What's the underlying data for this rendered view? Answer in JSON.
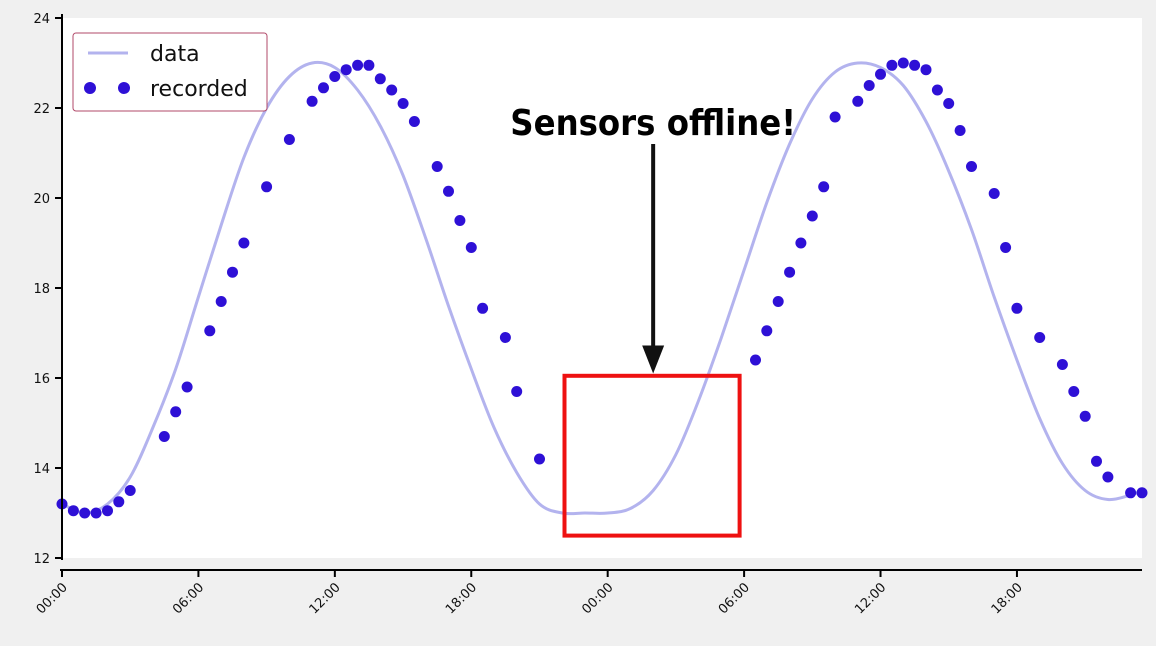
{
  "chart_data": {
    "type": "line",
    "title": "",
    "xlabel": "",
    "ylabel": "",
    "ylim": [
      12,
      24
    ],
    "xlim_hours": [
      0,
      47.5
    ],
    "y_ticks": [
      12,
      14,
      16,
      18,
      20,
      22,
      24
    ],
    "x_tick_hours": [
      0,
      6,
      12,
      18,
      24,
      30,
      36,
      42
    ],
    "x_tick_labels": [
      "00:00",
      "06:00",
      "12:00",
      "18:00",
      "00:00",
      "06:00",
      "12:00",
      "18:00"
    ],
    "grid": false,
    "legend": {
      "placement": "top-left",
      "entries": [
        "data",
        "recorded"
      ]
    },
    "colors": {
      "line": "#b3b3ee",
      "points": "#2e10d6",
      "box": "#ee1111",
      "arrow": "#111111",
      "plot_bg": "#ffffff",
      "page_bg": "#f0f0f0"
    },
    "series": [
      {
        "name": "data",
        "kind": "line",
        "x_hours": [
          0,
          1,
          2,
          3,
          4,
          5,
          6,
          7,
          8,
          9,
          10,
          11,
          12,
          13,
          14,
          15,
          16,
          17,
          18,
          19,
          20,
          21,
          22,
          23,
          24,
          25,
          26,
          27,
          28,
          29,
          30,
          31,
          32,
          33,
          34,
          35,
          36,
          37,
          38,
          39,
          40,
          41,
          42,
          43,
          44,
          45,
          46,
          47,
          47.5
        ],
        "y": [
          13.2,
          13.0,
          13.2,
          13.8,
          14.9,
          16.2,
          17.8,
          19.4,
          20.9,
          22.0,
          22.7,
          23.0,
          22.9,
          22.4,
          21.6,
          20.5,
          19.1,
          17.6,
          16.2,
          14.9,
          13.9,
          13.2,
          13.0,
          13.0,
          13.0,
          13.1,
          13.5,
          14.3,
          15.5,
          16.9,
          18.4,
          19.9,
          21.2,
          22.2,
          22.8,
          23.0,
          22.9,
          22.5,
          21.7,
          20.6,
          19.3,
          17.8,
          16.4,
          15.1,
          14.1,
          13.5,
          13.3,
          13.4,
          13.5
        ]
      },
      {
        "name": "recorded",
        "kind": "scatter",
        "x_hours": [
          0.0,
          0.5,
          1.0,
          1.5,
          2.0,
          2.5,
          3.0,
          4.5,
          5.0,
          5.5,
          6.5,
          7.0,
          7.5,
          8.0,
          9.0,
          10.0,
          11.0,
          11.5,
          12.0,
          12.5,
          13.0,
          13.5,
          14.0,
          14.5,
          15.0,
          15.5,
          16.5,
          17.0,
          17.5,
          18.0,
          18.5,
          19.5,
          20.0,
          21.0,
          30.5,
          31.0,
          31.5,
          32.0,
          32.5,
          33.0,
          33.5,
          34.0,
          35.0,
          35.5,
          36.0,
          36.5,
          37.0,
          37.5,
          38.0,
          38.5,
          39.0,
          39.5,
          40.0,
          41.0,
          41.5,
          42.0,
          43.0,
          44.0,
          44.5,
          45.0,
          45.5,
          46.0,
          47.0,
          47.5
        ],
        "y": [
          13.2,
          13.05,
          13.0,
          13.0,
          13.05,
          13.25,
          13.5,
          14.7,
          15.25,
          15.8,
          17.05,
          17.7,
          18.35,
          19.0,
          20.25,
          21.3,
          22.15,
          22.45,
          22.7,
          22.85,
          22.95,
          22.95,
          22.65,
          22.4,
          22.1,
          21.7,
          20.7,
          20.15,
          19.5,
          18.9,
          17.55,
          16.9,
          15.7,
          14.2,
          16.4,
          17.05,
          17.7,
          18.35,
          19.0,
          19.6,
          20.25,
          21.8,
          22.15,
          22.5,
          22.75,
          22.95,
          23.0,
          22.95,
          22.85,
          22.4,
          22.1,
          21.5,
          20.7,
          20.1,
          18.9,
          17.55,
          16.9,
          16.3,
          15.7,
          15.15,
          14.15,
          13.8,
          13.45,
          13.45
        ]
      }
    ],
    "annotations": [
      {
        "type": "text",
        "text": "Sensors offline!",
        "x_hour": 26,
        "y": 21.4
      },
      {
        "type": "arrow",
        "from": {
          "x_hour": 26,
          "y": 21.2
        },
        "to": {
          "x_hour": 26,
          "y": 16.1
        }
      },
      {
        "type": "rectangle",
        "x_hours": [
          22.1,
          29.8
        ],
        "y": [
          12.5,
          16.05
        ]
      }
    ]
  }
}
